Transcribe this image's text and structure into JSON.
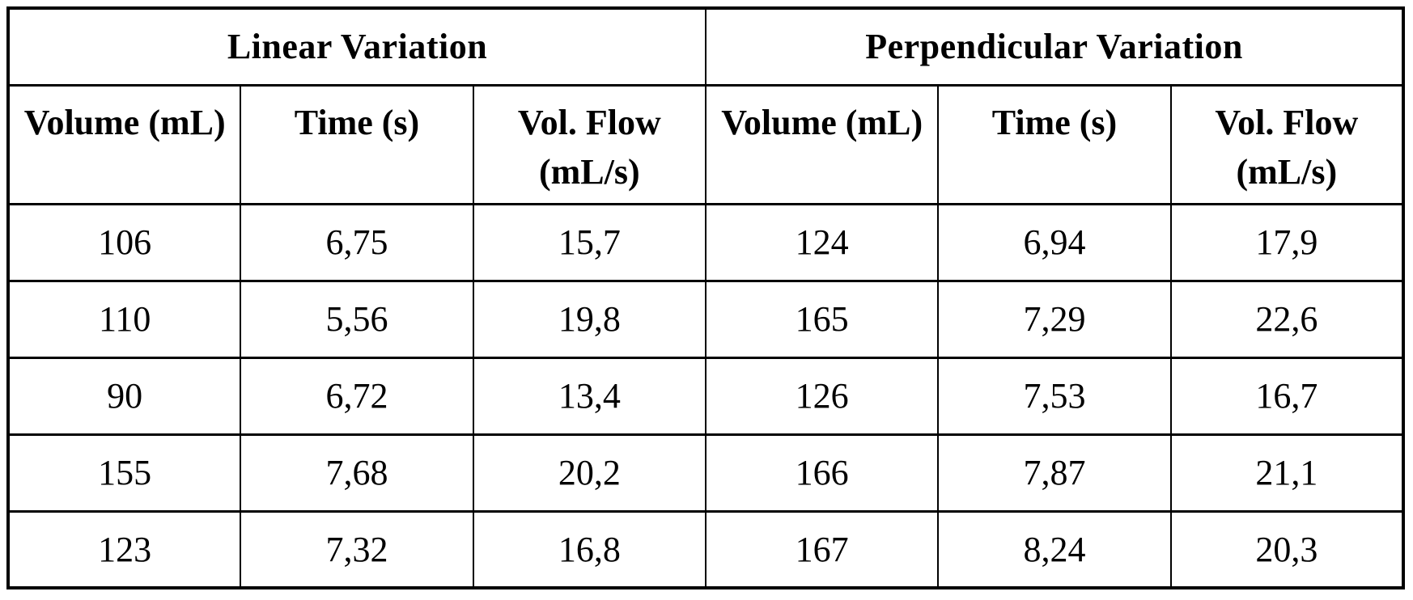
{
  "colors": {
    "background": "#ffffff",
    "border": "#000000",
    "text": "#000000"
  },
  "table": {
    "sections": [
      {
        "title": "Linear Variation"
      },
      {
        "title": "Perpendicular Variation"
      }
    ],
    "column_headers": [
      "Volume (mL)",
      "Time (s)",
      "Vol. Flow\n(mL/s)",
      "Volume (mL)",
      "Time (s)",
      "Vol. Flow\n(mL/s)"
    ],
    "rows": [
      [
        "106",
        "6,75",
        "15,7",
        "124",
        "6,94",
        "17,9"
      ],
      [
        "110",
        "5,56",
        "19,8",
        "165",
        "7,29",
        "22,6"
      ],
      [
        "90",
        "6,72",
        "13,4",
        "126",
        "7,53",
        "16,7"
      ],
      [
        "155",
        "7,68",
        "20,2",
        "166",
        "7,87",
        "21,1"
      ],
      [
        "123",
        "7,32",
        "16,8",
        "167",
        "8,24",
        "20,3"
      ]
    ]
  }
}
